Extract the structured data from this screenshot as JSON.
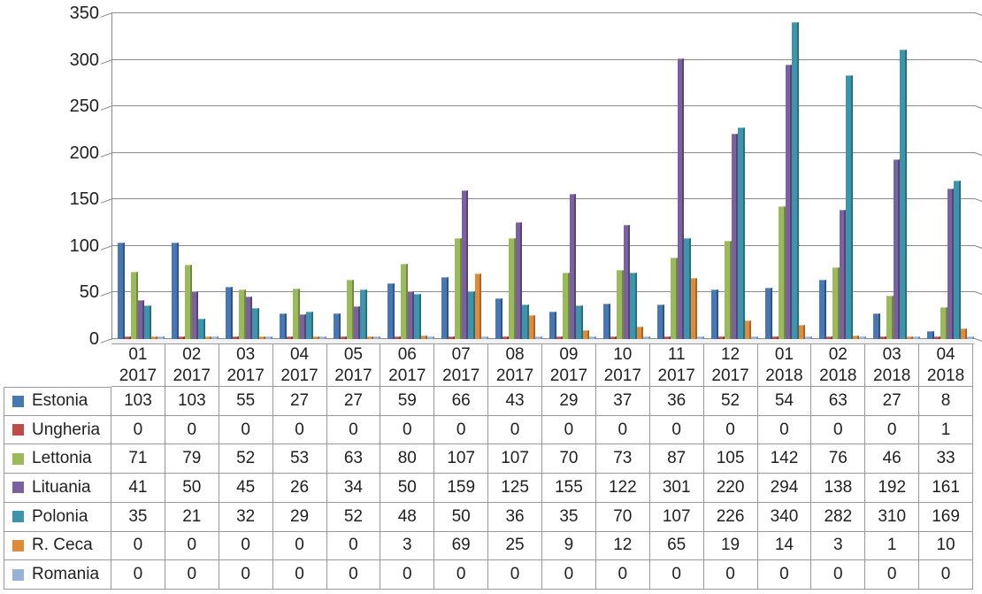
{
  "chart_data": {
    "type": "bar",
    "title": "",
    "xlabel": "",
    "ylabel": "",
    "ylim": [
      0,
      350
    ],
    "y_tick_step": 50,
    "y_ticks": [
      "350",
      "300",
      "250",
      "200",
      "150",
      "100",
      "50",
      "0"
    ],
    "grid": true,
    "legend_position": "data-table-left",
    "categories": [
      "01 2017",
      "02 2017",
      "03 2017",
      "04 2017",
      "05 2017",
      "06 2017",
      "07 2017",
      "08 2017",
      "09 2017",
      "10 2017",
      "11 2017",
      "12 2017",
      "01 2018",
      "02 2018",
      "03 2018",
      "04 2018"
    ],
    "series": [
      {
        "name": "Estonia",
        "color": "#4778B3",
        "edge_color": "#2D5587",
        "values": [
          103,
          103,
          55,
          27,
          27,
          59,
          66,
          43,
          29,
          37,
          36,
          52,
          54,
          63,
          27,
          8
        ]
      },
      {
        "name": "Ungheria",
        "color": "#BE4B48",
        "edge_color": "#8A3432",
        "values": [
          0,
          0,
          0,
          0,
          0,
          0,
          0,
          0,
          0,
          0,
          0,
          0,
          0,
          0,
          0,
          1
        ]
      },
      {
        "name": "Lettonia",
        "color": "#9ABA5B",
        "edge_color": "#70893E",
        "values": [
          71,
          79,
          52,
          53,
          63,
          80,
          107,
          107,
          70,
          73,
          87,
          105,
          142,
          76,
          46,
          33
        ]
      },
      {
        "name": "Lituania",
        "color": "#7C61A0",
        "edge_color": "#584377",
        "values": [
          41,
          50,
          45,
          26,
          34,
          50,
          159,
          125,
          155,
          122,
          301,
          220,
          294,
          138,
          192,
          161
        ]
      },
      {
        "name": "Polonia",
        "color": "#3D95AC",
        "edge_color": "#24707F",
        "values": [
          35,
          21,
          32,
          29,
          52,
          48,
          50,
          36,
          35,
          70,
          107,
          226,
          340,
          282,
          310,
          169
        ]
      },
      {
        "name": "R. Ceca",
        "color": "#E08B3B",
        "edge_color": "#AA6523",
        "values": [
          0,
          0,
          0,
          0,
          0,
          3,
          69,
          25,
          9,
          12,
          65,
          19,
          14,
          3,
          1,
          10
        ]
      },
      {
        "name": "Romania",
        "color": "#95B3D7",
        "edge_color": "#6C8EBB",
        "values": [
          0,
          0,
          0,
          0,
          0,
          0,
          0,
          0,
          0,
          0,
          0,
          0,
          0,
          0,
          0,
          0
        ]
      }
    ],
    "colors": {
      "gridline": "#8a8a8a",
      "axis": "#8a8a8a",
      "table_border": "#9a9a9a",
      "text": "#1f1f1f"
    }
  }
}
